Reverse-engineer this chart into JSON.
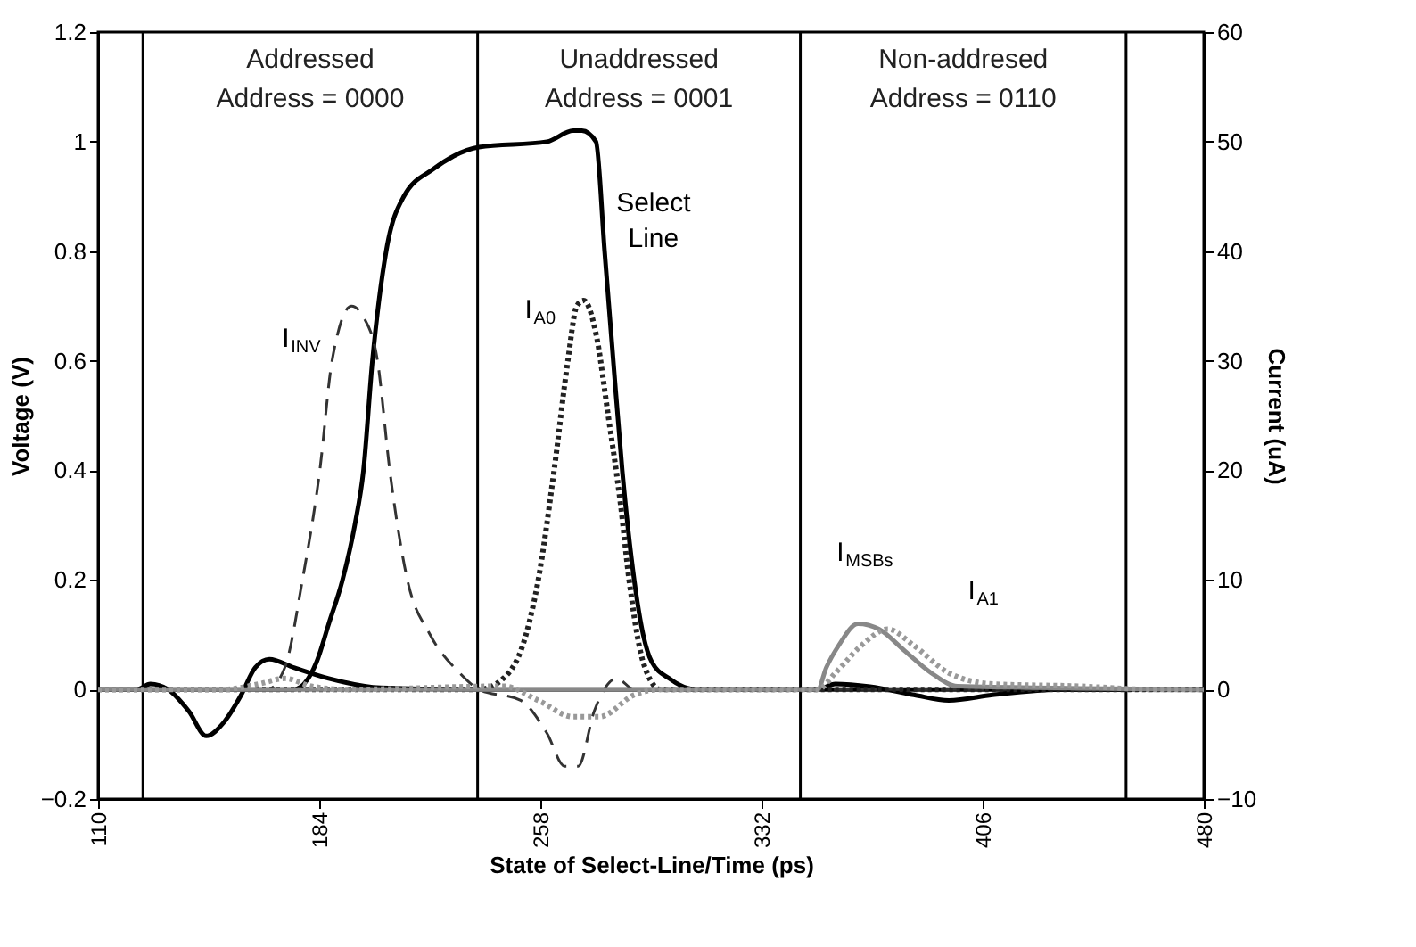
{
  "chart_data": {
    "type": "line",
    "xlabel": "State of Select-Line/Time (ps)",
    "ylabel": "Voltage (V)",
    "y2label": "Current (uA)",
    "xlim": [
      110,
      480
    ],
    "xticks": [
      110,
      184,
      258,
      332,
      406,
      480
    ],
    "ylim": [
      -0.2,
      1.2
    ],
    "yticks": [
      -0.2,
      0,
      0.2,
      0.4,
      0.6,
      0.8,
      1,
      1.2
    ],
    "y2lim": [
      -10,
      60
    ],
    "y2ticks": [
      -10,
      0,
      10,
      20,
      30,
      40,
      50,
      60
    ],
    "grid": false,
    "marker": "none",
    "ref_lines": [
      {
        "axis": "x",
        "value": 125,
        "color": "#000000"
      },
      {
        "axis": "x",
        "value": 237,
        "color": "#000000"
      },
      {
        "axis": "x",
        "value": 345,
        "color": "#000000"
      },
      {
        "axis": "x",
        "value": 454,
        "color": "#000000"
      }
    ],
    "annotations": [
      "Addressed\nAddress = 0000",
      "Unaddressed\nAddress = 0001",
      "Non-addresed\nAddress = 0110"
    ],
    "series": [
      {
        "name": "Select Line",
        "color": "#000000",
        "line_style": "solid",
        "x": [
          110,
          175.5,
          183.1,
          187.2,
          191.8,
          195.9,
          198.8,
          201.8,
          206.4,
          212.3,
          222.2,
          237.4,
          260.2,
          269,
          271.9,
          276.6,
          279.5,
          282.4,
          285.4,
          289.4,
          292.4,
          295.3,
          301.1,
          310,
          480
        ],
        "values": [
          0,
          0,
          0.05,
          0.12,
          0.2,
          0.3,
          0.4,
          0.6,
          0.8,
          0.9,
          0.95,
          0.99,
          1.0,
          1.02,
          1.02,
          1.0,
          0.8,
          0.6,
          0.4,
          0.2,
          0.1,
          0.05,
          0.02,
          0,
          0
        ]
      },
      {
        "color": "#000000",
        "line_style": "solid",
        "x": [
          110,
          122.9,
          127.5,
          133.4,
          140.4,
          146.2,
          152.1,
          157.9,
          162.6,
          167.3,
          175.5,
          187.2,
          204.7,
          233.9,
          350.8,
          356.7,
          368.3,
          383,
          394.7,
          409.3,
          432.6,
          480
        ],
        "values": [
          0,
          0,
          0.01,
          0,
          -0.04,
          -0.085,
          -0.06,
          -0.01,
          0.04,
          0.055,
          0.04,
          0.02,
          0.003,
          0,
          0,
          0.01,
          0.005,
          -0.01,
          -0.02,
          -0.01,
          0,
          0
        ]
      },
      {
        "name": "I$_{INV}$",
        "color": "#333333",
        "line_style": "dashed",
        "axis": "y2",
        "x": [
          110,
          166.7,
          172.5,
          178.4,
          184.2,
          188.3,
          194.8,
          198.8,
          203.5,
          207.6,
          213.5,
          221.1,
          231,
          237.4,
          251.4,
          260.2,
          266.1,
          270.7,
          276,
          283.6,
          289.4,
          480
        ],
        "values": [
          0,
          0,
          2,
          10,
          20,
          30,
          35,
          34,
          30,
          20,
          10,
          5,
          1.5,
          0,
          -1,
          -4,
          -7,
          -7,
          -2,
          1,
          0,
          0
        ]
      },
      {
        "name": "I$_{A0}$",
        "color": "#222222",
        "line_style": "dotted",
        "axis": "y2",
        "x": [
          110,
          237.4,
          245.6,
          253.2,
          257.3,
          262.6,
          267.2,
          270.2,
          272.5,
          276.6,
          280.7,
          284.8,
          287.7,
          292.4,
          298.2,
          480
        ],
        "values": [
          0,
          0,
          1,
          5,
          10,
          20,
          30,
          35,
          35.5,
          32.5,
          25,
          17,
          10,
          2.5,
          0,
          0
        ]
      },
      {
        "name": "I$_{MSBs}$",
        "color": "#888888",
        "line_style": "solid",
        "axis": "y2",
        "x": [
          110,
          350.8,
          353.7,
          357.8,
          364.3,
          371.3,
          380,
          388.8,
          397.6,
          480
        ],
        "values": [
          0,
          0,
          2,
          4,
          6,
          5.5,
          3.5,
          1.5,
          0.3,
          0
        ]
      },
      {
        "name": "I$_{A1}$",
        "color": "#999999",
        "line_style": "dotted",
        "axis": "y2",
        "x": [
          110,
          152.1,
          163.8,
          172.5,
          181.3,
          193,
          245.6,
          257.3,
          269,
          277.8,
          289.4,
          298.2,
          350.8,
          356.7,
          365.4,
          374.2,
          383,
          394.7,
          409.3,
          438.5,
          461.9,
          480
        ],
        "values": [
          0,
          0,
          0.5,
          1,
          0.3,
          0,
          0.3,
          -1,
          -2.5,
          -2.5,
          -0.5,
          0,
          0,
          1.5,
          4,
          5.5,
          4,
          1.5,
          0.5,
          0.3,
          0,
          0
        ]
      }
    ]
  }
}
